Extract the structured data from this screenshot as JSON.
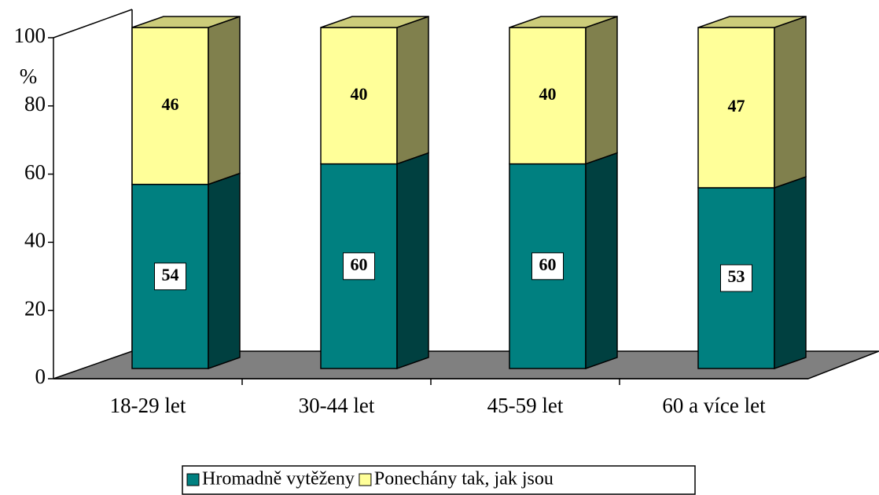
{
  "chart_data": {
    "type": "bar",
    "stacked": true,
    "y_label": "%",
    "categories": [
      "18-29 let",
      "30-44 let",
      "45-59 let",
      "60 a více let"
    ],
    "series": [
      {
        "name": "Hromadně vytěženy",
        "color": "#008080",
        "values": [
          54,
          60,
          60,
          53
        ]
      },
      {
        "name": "Ponechány tak, jak jsou",
        "color": "#ffff99",
        "values": [
          46,
          40,
          40,
          47
        ]
      }
    ],
    "ylim": [
      0,
      100
    ],
    "yticks": [
      0,
      20,
      40,
      60,
      80,
      100
    ]
  }
}
